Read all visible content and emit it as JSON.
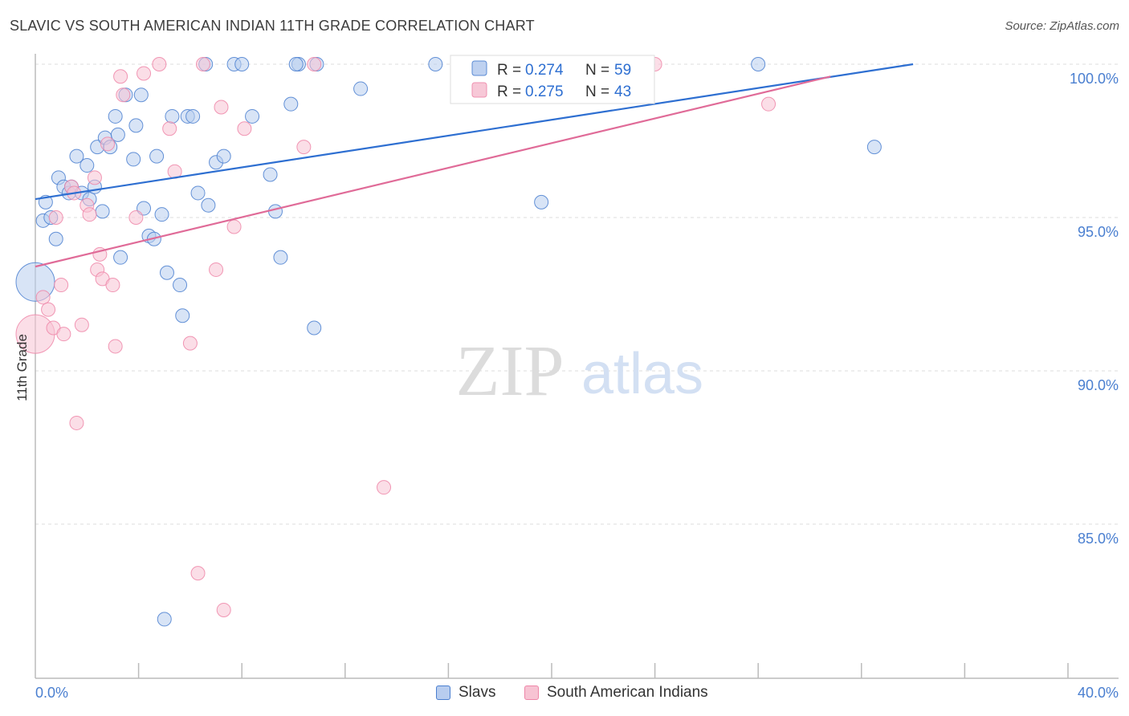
{
  "header": {
    "title": "SLAVIC VS SOUTH AMERICAN INDIAN 11TH GRADE CORRELATION CHART",
    "source": "Source: ZipAtlas.com"
  },
  "watermark": {
    "zip": "ZIP",
    "atlas": "atlas"
  },
  "colors": {
    "blue": "#4a7fd0",
    "blue_fill": "#b8cdef",
    "blue_line": "#2e6fd1",
    "pink_fill": "#f7c3d3",
    "pink_stroke": "#ee86a8",
    "pink_line": "#e06b98",
    "grid": "#dddddd"
  },
  "stats": [
    {
      "r_label": "R = ",
      "r_value": "0.274",
      "n_label": "N = ",
      "n_value": "59"
    },
    {
      "r_label": "R = ",
      "r_value": "0.275",
      "n_label": "N = ",
      "n_value": "43"
    }
  ],
  "legend": [
    {
      "label": "Slavs"
    },
    {
      "label": "South American Indians"
    }
  ],
  "chart_data": {
    "type": "scatter",
    "title": "SLAVIC VS SOUTH AMERICAN INDIAN 11TH GRADE CORRELATION CHART",
    "xlabel": "",
    "ylabel": "11th Grade",
    "xlim": [
      0,
      40
    ],
    "ylim": [
      80,
      100.8
    ],
    "x_tick_labels": [
      "0.0%",
      "40.0%"
    ],
    "y_ticks": [
      {
        "value": 100,
        "label": "100.0%"
      },
      {
        "value": 95,
        "label": "95.0%"
      },
      {
        "value": 90,
        "label": "90.0%"
      },
      {
        "value": 85,
        "label": "85.0%"
      }
    ],
    "x_minor_ticks": [
      4,
      8,
      12,
      16,
      20,
      24,
      28,
      32,
      36,
      40
    ],
    "grid": true,
    "series": [
      {
        "name": "Slavs",
        "r": 0.274,
        "n": 59,
        "trend": {
          "x": [
            0,
            34.0
          ],
          "y": [
            95.6,
            100.0
          ]
        },
        "points": [
          {
            "x": 0.0,
            "y": 92.9,
            "big": true
          },
          {
            "x": 0.3,
            "y": 94.9
          },
          {
            "x": 0.4,
            "y": 95.5
          },
          {
            "x": 0.6,
            "y": 95.0
          },
          {
            "x": 0.8,
            "y": 94.3
          },
          {
            "x": 0.9,
            "y": 96.3
          },
          {
            "x": 1.1,
            "y": 96.0
          },
          {
            "x": 1.3,
            "y": 95.8
          },
          {
            "x": 1.4,
            "y": 96.0
          },
          {
            "x": 1.6,
            "y": 97.0
          },
          {
            "x": 1.8,
            "y": 95.8
          },
          {
            "x": 2.0,
            "y": 96.7
          },
          {
            "x": 2.1,
            "y": 95.6
          },
          {
            "x": 2.3,
            "y": 96.0
          },
          {
            "x": 2.4,
            "y": 97.3
          },
          {
            "x": 2.6,
            "y": 95.2
          },
          {
            "x": 2.7,
            "y": 97.6
          },
          {
            "x": 2.9,
            "y": 97.3
          },
          {
            "x": 3.1,
            "y": 98.3
          },
          {
            "x": 3.2,
            "y": 97.7
          },
          {
            "x": 3.3,
            "y": 93.7
          },
          {
            "x": 3.5,
            "y": 99.0
          },
          {
            "x": 3.8,
            "y": 96.9
          },
          {
            "x": 3.9,
            "y": 98.0
          },
          {
            "x": 4.1,
            "y": 99.0
          },
          {
            "x": 4.2,
            "y": 95.3
          },
          {
            "x": 4.4,
            "y": 94.4
          },
          {
            "x": 4.6,
            "y": 94.3
          },
          {
            "x": 4.7,
            "y": 97.0
          },
          {
            "x": 4.9,
            "y": 95.1
          },
          {
            "x": 5.1,
            "y": 93.2
          },
          {
            "x": 5.3,
            "y": 98.3
          },
          {
            "x": 5.6,
            "y": 92.8
          },
          {
            "x": 5.7,
            "y": 91.8
          },
          {
            "x": 5.9,
            "y": 98.3
          },
          {
            "x": 6.1,
            "y": 98.3
          },
          {
            "x": 6.3,
            "y": 95.8
          },
          {
            "x": 6.7,
            "y": 95.4
          },
          {
            "x": 7.0,
            "y": 96.8
          },
          {
            "x": 7.3,
            "y": 97.0
          },
          {
            "x": 7.7,
            "y": 100.0
          },
          {
            "x": 8.4,
            "y": 98.3
          },
          {
            "x": 9.1,
            "y": 96.4
          },
          {
            "x": 9.3,
            "y": 95.2
          },
          {
            "x": 9.5,
            "y": 93.7
          },
          {
            "x": 9.9,
            "y": 98.7
          },
          {
            "x": 10.2,
            "y": 100.0
          },
          {
            "x": 10.8,
            "y": 91.4
          },
          {
            "x": 12.6,
            "y": 99.2
          },
          {
            "x": 15.5,
            "y": 100.0
          },
          {
            "x": 19.6,
            "y": 95.5
          },
          {
            "x": 28.0,
            "y": 100.0
          },
          {
            "x": 32.5,
            "y": 97.3
          },
          {
            "x": 5.0,
            "y": 81.9
          },
          {
            "x": 6.6,
            "y": 100.0
          },
          {
            "x": 8.0,
            "y": 100.0
          },
          {
            "x": 10.1,
            "y": 100.0
          },
          {
            "x": 10.9,
            "y": 100.0
          },
          {
            "x": 17.0,
            "y": 100.0
          }
        ]
      },
      {
        "name": "South American Indians",
        "r": 0.275,
        "n": 43,
        "trend": {
          "x": [
            0,
            30.8
          ],
          "y": [
            93.4,
            99.6
          ]
        },
        "points": [
          {
            "x": 0.0,
            "y": 91.2,
            "big": true
          },
          {
            "x": 0.3,
            "y": 92.4
          },
          {
            "x": 0.5,
            "y": 92.0
          },
          {
            "x": 0.7,
            "y": 91.4
          },
          {
            "x": 0.8,
            "y": 95.0
          },
          {
            "x": 1.0,
            "y": 92.8
          },
          {
            "x": 1.1,
            "y": 91.2
          },
          {
            "x": 1.4,
            "y": 96.0
          },
          {
            "x": 1.5,
            "y": 95.8
          },
          {
            "x": 1.6,
            "y": 88.3
          },
          {
            "x": 1.8,
            "y": 91.5
          },
          {
            "x": 2.0,
            "y": 95.4
          },
          {
            "x": 2.1,
            "y": 95.1
          },
          {
            "x": 2.3,
            "y": 96.3
          },
          {
            "x": 2.4,
            "y": 93.3
          },
          {
            "x": 2.5,
            "y": 93.8
          },
          {
            "x": 2.6,
            "y": 93.0
          },
          {
            "x": 2.8,
            "y": 97.4
          },
          {
            "x": 3.0,
            "y": 92.8
          },
          {
            "x": 3.1,
            "y": 90.8
          },
          {
            "x": 3.3,
            "y": 99.6
          },
          {
            "x": 3.4,
            "y": 99.0
          },
          {
            "x": 3.9,
            "y": 95.0
          },
          {
            "x": 4.2,
            "y": 99.7
          },
          {
            "x": 4.8,
            "y": 100.0
          },
          {
            "x": 5.2,
            "y": 97.9
          },
          {
            "x": 5.4,
            "y": 96.5
          },
          {
            "x": 6.0,
            "y": 90.9
          },
          {
            "x": 6.3,
            "y": 83.4
          },
          {
            "x": 6.5,
            "y": 100.0
          },
          {
            "x": 7.0,
            "y": 93.3
          },
          {
            "x": 7.2,
            "y": 98.6
          },
          {
            "x": 7.3,
            "y": 82.2
          },
          {
            "x": 7.7,
            "y": 94.7
          },
          {
            "x": 8.1,
            "y": 97.9
          },
          {
            "x": 10.4,
            "y": 97.3
          },
          {
            "x": 10.8,
            "y": 100.0
          },
          {
            "x": 13.5,
            "y": 86.2
          },
          {
            "x": 16.8,
            "y": 100.0
          },
          {
            "x": 17.0,
            "y": 100.0
          },
          {
            "x": 24.0,
            "y": 100.0
          },
          {
            "x": 28.4,
            "y": 98.7
          },
          {
            "x": 22.0,
            "y": 100.0
          }
        ]
      }
    ]
  }
}
